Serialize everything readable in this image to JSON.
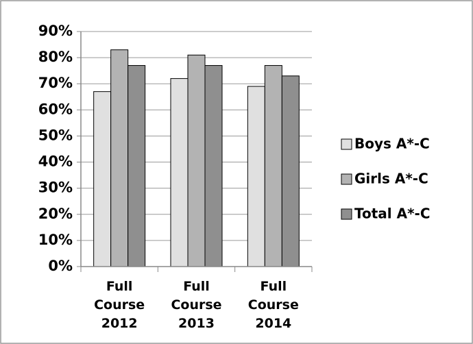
{
  "chart_data": {
    "type": "bar",
    "categories": [
      "Full Course 2012",
      "Full Course 2013",
      "Full Course 2014"
    ],
    "series": [
      {
        "name": "Boys A*-C",
        "color": "#e0e0e0",
        "values": [
          67,
          72,
          69
        ]
      },
      {
        "name": "Girls A*-C",
        "color": "#b3b3b3",
        "values": [
          83,
          81,
          77
        ]
      },
      {
        "name": "Total A*-C",
        "color": "#8f8f8f",
        "values": [
          77,
          77,
          73
        ]
      }
    ],
    "ylim": [
      0,
      90
    ],
    "yticks": [
      {
        "value": 0,
        "label": "0%"
      },
      {
        "value": 10,
        "label": "10%"
      },
      {
        "value": 20,
        "label": "20%"
      },
      {
        "value": 30,
        "label": "30%"
      },
      {
        "value": 40,
        "label": "40%"
      },
      {
        "value": 50,
        "label": "50%"
      },
      {
        "value": 60,
        "label": "60%"
      },
      {
        "value": 70,
        "label": "70%"
      },
      {
        "value": 80,
        "label": "80%"
      },
      {
        "value": 90,
        "label": "90%"
      }
    ],
    "grid": true,
    "legend": "right"
  }
}
